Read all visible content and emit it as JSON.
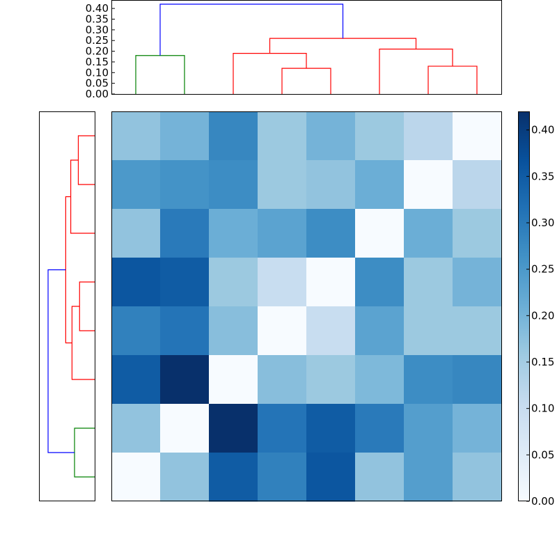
{
  "chart_data": [
    {
      "type": "dendrogram",
      "panel": "top",
      "ylim": [
        0.0,
        0.42
      ],
      "yticks": [
        "0.00",
        "0.05",
        "0.10",
        "0.15",
        "0.20",
        "0.25",
        "0.30",
        "0.35",
        "0.40"
      ],
      "tick_values": [
        0.0,
        0.05,
        0.1,
        0.15,
        0.2,
        0.25,
        0.3,
        0.35,
        0.4
      ],
      "leaves": 8,
      "links": [
        {
          "leaves_left": [
            0
          ],
          "leaves_right": [
            1
          ],
          "left_height": 0.0,
          "right_height": 0.0,
          "height": 0.18,
          "color": "#008000"
        },
        {
          "leaves_left": [
            3
          ],
          "leaves_right": [
            4
          ],
          "left_height": 0.0,
          "right_height": 0.0,
          "height": 0.12,
          "color": "#ff0000"
        },
        {
          "leaves_left": [
            2
          ],
          "leaves_right": [
            3,
            4
          ],
          "left_height": 0.0,
          "right_height": 0.12,
          "height": 0.19,
          "color": "#ff0000"
        },
        {
          "leaves_left": [
            6
          ],
          "leaves_right": [
            7
          ],
          "left_height": 0.0,
          "right_height": 0.0,
          "height": 0.13,
          "color": "#ff0000"
        },
        {
          "leaves_left": [
            5
          ],
          "leaves_right": [
            6,
            7
          ],
          "left_height": 0.0,
          "right_height": 0.13,
          "height": 0.21,
          "color": "#ff0000"
        },
        {
          "leaves_left": [
            2,
            3,
            4
          ],
          "leaves_right": [
            5,
            6,
            7
          ],
          "left_height": 0.19,
          "right_height": 0.21,
          "height": 0.26,
          "color": "#ff0000"
        },
        {
          "leaves_left": [
            0,
            1
          ],
          "leaves_right": [
            2,
            3,
            4,
            5,
            6,
            7
          ],
          "left_height": 0.18,
          "right_height": 0.26,
          "height": 0.42,
          "color": "#0000ff"
        }
      ]
    },
    {
      "type": "dendrogram",
      "panel": "left",
      "orientation": "left",
      "xlim": [
        0.42,
        0.0
      ],
      "leaves": 8,
      "links": [
        {
          "leaves_a": [
            0
          ],
          "leaves_b": [
            1
          ],
          "a_height": 0.0,
          "b_height": 0.0,
          "height": 0.13,
          "color": "#ff0000"
        },
        {
          "leaves_a": [
            0,
            1
          ],
          "leaves_b": [
            2
          ],
          "a_height": 0.13,
          "b_height": 0.0,
          "height": 0.19,
          "color": "#ff0000"
        },
        {
          "leaves_a": [
            3
          ],
          "leaves_b": [
            4
          ],
          "a_height": 0.0,
          "b_height": 0.0,
          "height": 0.12,
          "color": "#ff0000"
        },
        {
          "leaves_a": [
            3,
            4
          ],
          "leaves_b": [
            5
          ],
          "a_height": 0.12,
          "b_height": 0.0,
          "height": 0.18,
          "color": "#ff0000"
        },
        {
          "leaves_a": [
            0,
            1,
            2
          ],
          "leaves_b": [
            3,
            4,
            5
          ],
          "a_height": 0.19,
          "b_height": 0.18,
          "height": 0.23,
          "color": "#ff0000"
        },
        {
          "leaves_a": [
            6
          ],
          "leaves_b": [
            7
          ],
          "a_height": 0.0,
          "b_height": 0.0,
          "height": 0.16,
          "color": "#008000"
        },
        {
          "leaves_a": [
            0,
            1,
            2,
            3,
            4,
            5
          ],
          "leaves_b": [
            6,
            7
          ],
          "a_height": 0.23,
          "b_height": 0.16,
          "height": 0.37,
          "color": "#0000ff"
        }
      ]
    },
    {
      "type": "heatmap",
      "colormap": "Blues",
      "vmin": 0.0,
      "vmax": 0.42,
      "rows": 8,
      "cols": 8,
      "values": [
        [
          0.17,
          0.2,
          0.28,
          0.16,
          0.2,
          0.16,
          0.12,
          0.0
        ],
        [
          0.25,
          0.26,
          0.27,
          0.16,
          0.17,
          0.21,
          0.0,
          0.12
        ],
        [
          0.17,
          0.3,
          0.21,
          0.23,
          0.27,
          0.0,
          0.21,
          0.16
        ],
        [
          0.36,
          0.35,
          0.16,
          0.1,
          0.0,
          0.27,
          0.16,
          0.2
        ],
        [
          0.29,
          0.31,
          0.18,
          0.0,
          0.1,
          0.23,
          0.16,
          0.16
        ],
        [
          0.35,
          0.42,
          0.0,
          0.18,
          0.16,
          0.19,
          0.27,
          0.28
        ],
        [
          0.17,
          0.0,
          0.42,
          0.31,
          0.35,
          0.3,
          0.24,
          0.2
        ],
        [
          0.0,
          0.17,
          0.35,
          0.29,
          0.36,
          0.17,
          0.24,
          0.17
        ]
      ]
    },
    {
      "type": "colorbar",
      "colormap": "Blues",
      "vmin": 0.0,
      "vmax": 0.42,
      "ticks": [
        "0.00",
        "0.05",
        "0.10",
        "0.15",
        "0.20",
        "0.25",
        "0.30",
        "0.35",
        "0.40"
      ],
      "tick_values": [
        0.0,
        0.05,
        0.1,
        0.15,
        0.2,
        0.25,
        0.3,
        0.35,
        0.4
      ]
    }
  ]
}
